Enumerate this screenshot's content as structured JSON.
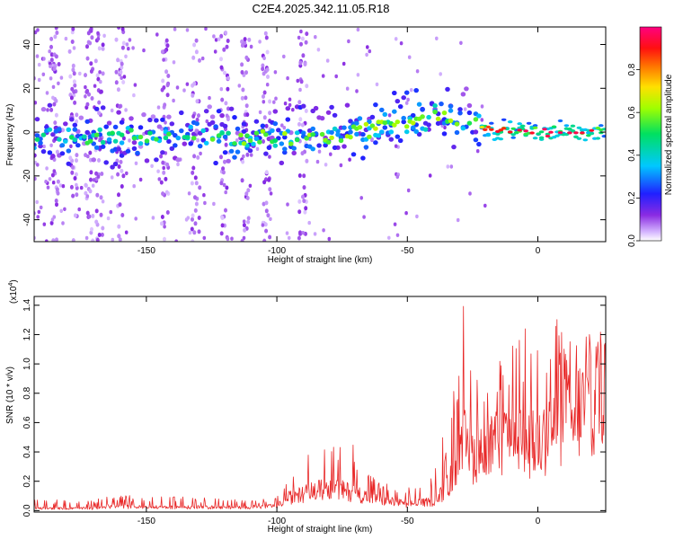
{
  "title": "C2E4.2025.342.11.05.R18",
  "chart_data": [
    {
      "type": "heatmap",
      "xlabel": "Height of straight line (km)",
      "ylabel": "Frequency (Hz)",
      "xlim": [
        -193,
        26
      ],
      "ylim": [
        -50,
        48
      ],
      "xticks": [
        -150,
        -100,
        -50,
        0
      ],
      "yticks": [
        -40,
        -20,
        0,
        20,
        40
      ],
      "colorbar": {
        "label": "Normalized spectral amplitude",
        "range": [
          0,
          1
        ],
        "ticks": [
          0.0,
          0.2,
          0.4,
          0.6,
          0.8
        ],
        "tick_labels": [
          "0.0",
          "0.2",
          "0.4",
          "0.6",
          "0.8"
        ],
        "colormap": "rainbow (white-violet-blue-cyan-green-yellow-red-magenta)"
      },
      "ridge": {
        "description": "dominant frequency band vs height",
        "x": [
          -193,
          -150,
          -100,
          -75,
          -50,
          -40,
          -30,
          -23,
          -20,
          0,
          26
        ],
        "center_hz": [
          -2,
          -2,
          -3,
          -1,
          5,
          7,
          6,
          4,
          1,
          0,
          0
        ],
        "peak_amplitude": [
          0.35,
          0.4,
          0.45,
          0.5,
          0.5,
          0.5,
          0.45,
          0.5,
          0.9,
          0.95,
          0.95
        ]
      }
    },
    {
      "type": "line",
      "xlabel": "Height of straight line (km)",
      "ylabel": "SNR (10 * v/v)",
      "y_multiplier_label": "(x10",
      "y_multiplier_exp": "4",
      "y_multiplier_close": ")",
      "xlim": [
        -193,
        26
      ],
      "ylim": [
        -0.01,
        1.46
      ],
      "xticks": [
        -150,
        -100,
        -50,
        0
      ],
      "yticks": [
        0.0,
        0.2,
        0.4,
        0.6,
        0.8,
        1.0,
        1.2,
        1.4
      ],
      "ytick_labels": [
        "0.0",
        "0.2",
        "0.4",
        "0.6",
        "0.8",
        "1.0",
        "1.2",
        "1.4"
      ],
      "color": "#e82828",
      "envelope": {
        "x": [
          -193,
          -170,
          -165,
          -150,
          -140,
          -110,
          -100,
          -95,
          -85,
          -80,
          -70,
          -62,
          -50,
          -40,
          -35,
          -30,
          -28,
          -25,
          -22,
          -20,
          -15,
          -10,
          -5,
          0,
          5,
          10,
          15,
          20,
          26
        ],
        "y_typ": [
          0.02,
          0.02,
          0.04,
          0.03,
          0.03,
          0.03,
          0.04,
          0.12,
          0.18,
          0.2,
          0.16,
          0.1,
          0.06,
          0.08,
          0.2,
          0.45,
          0.6,
          0.5,
          0.5,
          0.55,
          0.6,
          0.62,
          0.6,
          0.6,
          0.7,
          0.8,
          0.9,
          1.0,
          1.1
        ],
        "y_peak": [
          0.08,
          0.07,
          0.12,
          0.09,
          0.1,
          0.07,
          0.09,
          0.3,
          0.42,
          0.43,
          0.48,
          0.2,
          0.15,
          0.3,
          0.6,
          1.35,
          1.46,
          1.1,
          0.95,
          0.9,
          1.05,
          1.2,
          1.25,
          1.1,
          1.35,
          1.3,
          1.25,
          1.2,
          1.17
        ]
      },
      "sample_count": 880
    }
  ]
}
